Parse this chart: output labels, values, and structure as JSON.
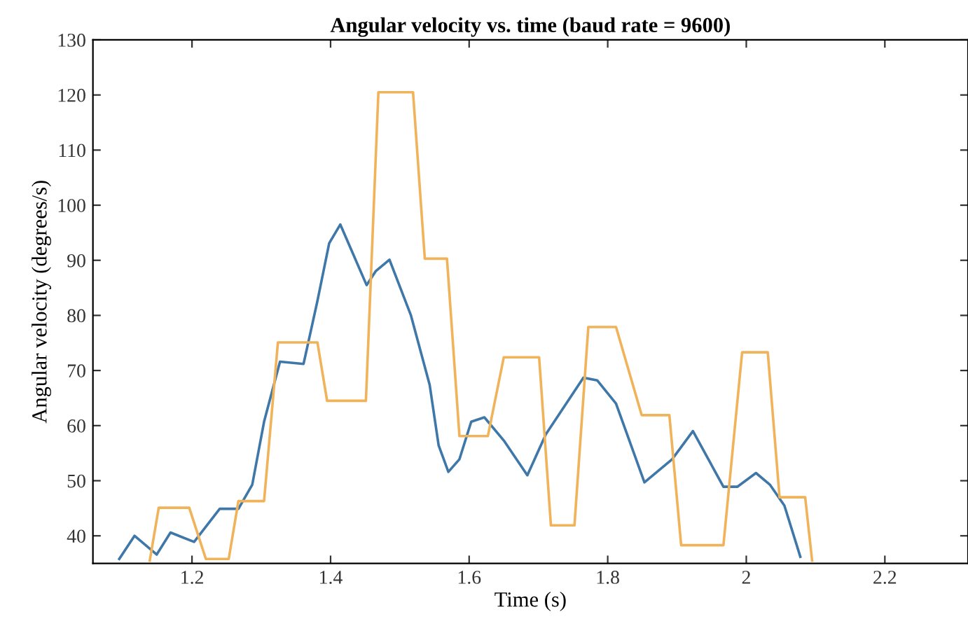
{
  "chart_data": {
    "type": "line",
    "title": "Angular velocity vs. time (baud rate = 9600)",
    "xlabel": "Time (s)",
    "ylabel": "Angular velocity (degrees/s)",
    "xlim": [
      1.057,
      2.32
    ],
    "ylim": [
      35,
      130
    ],
    "xticks": [
      1.2,
      1.4,
      1.6,
      1.8,
      2,
      2.2
    ],
    "yticks": [
      40,
      50,
      60,
      70,
      80,
      90,
      100,
      110,
      120,
      130
    ],
    "grid": false,
    "legend": false,
    "marker": "none",
    "line_style": "solid",
    "series": [
      {
        "color": "#3f78a8",
        "x": [
          1.095,
          1.117,
          1.149,
          1.169,
          1.203,
          1.24,
          1.267,
          1.287,
          1.304,
          1.327,
          1.361,
          1.381,
          1.398,
          1.414,
          1.452,
          1.465,
          1.485,
          1.516,
          1.543,
          1.556,
          1.57,
          1.586,
          1.603,
          1.622,
          1.65,
          1.684,
          1.711,
          1.765,
          1.785,
          1.812,
          1.853,
          1.893,
          1.923,
          1.967,
          1.987,
          2.014,
          2.034,
          2.055,
          2.078
        ],
        "values": [
          35.8,
          40.0,
          36.6,
          40.6,
          38.9,
          44.9,
          44.9,
          49.3,
          60.7,
          71.6,
          71.2,
          82.6,
          93.1,
          96.5,
          85.5,
          88.0,
          90.1,
          80.0,
          67.4,
          56.4,
          51.6,
          53.9,
          60.7,
          61.5,
          57.3,
          51.0,
          58.5,
          68.7,
          68.2,
          64.0,
          49.7,
          53.9,
          59.0,
          48.9,
          48.9,
          51.4,
          49.3,
          45.5,
          36.2
        ]
      },
      {
        "color": "#f0b35a",
        "x": [
          1.139,
          1.152,
          1.196,
          1.22,
          1.253,
          1.267,
          1.304,
          1.324,
          1.381,
          1.395,
          1.451,
          1.469,
          1.519,
          1.536,
          1.568,
          1.586,
          1.627,
          1.65,
          1.701,
          1.718,
          1.752,
          1.772,
          1.812,
          1.849,
          1.889,
          1.906,
          1.967,
          1.994,
          2.031,
          2.048,
          2.085,
          2.095
        ],
        "values": [
          35.5,
          45.1,
          45.1,
          35.8,
          35.8,
          46.3,
          46.3,
          75.1,
          75.1,
          64.5,
          64.5,
          120.5,
          120.5,
          90.3,
          90.3,
          58.1,
          58.1,
          72.4,
          72.4,
          41.9,
          41.9,
          77.9,
          77.9,
          61.9,
          61.9,
          38.3,
          38.3,
          73.3,
          73.3,
          47.0,
          47.0,
          35.5
        ]
      }
    ]
  }
}
